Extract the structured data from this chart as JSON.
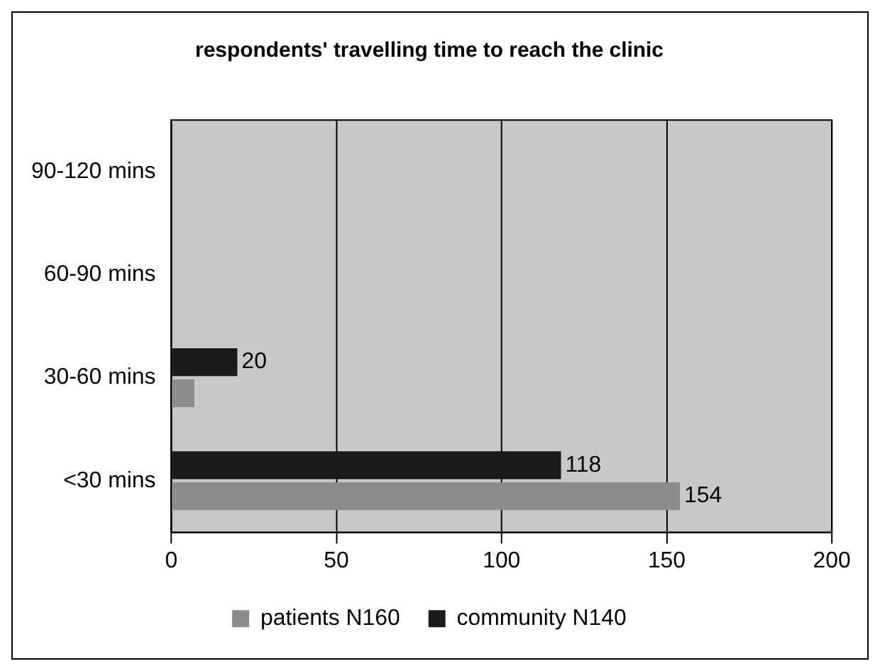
{
  "chart_data": {
    "type": "bar",
    "orientation": "horizontal",
    "title": "respondents' travelling time to reach the clinic",
    "categories": [
      "90-120 mins",
      "60-90 mins",
      "30-60 mins",
      "<30 mins"
    ],
    "series": [
      {
        "name": "patients N160",
        "color": "#8c8c8c",
        "values": [
          0,
          0,
          7,
          154
        ],
        "value_labels": [
          null,
          null,
          null,
          "154"
        ]
      },
      {
        "name": "community N140",
        "color": "#1a1a1a",
        "values": [
          0,
          0,
          20,
          118
        ],
        "value_labels": [
          null,
          null,
          "20",
          "118"
        ]
      }
    ],
    "xlim": [
      0,
      200
    ],
    "xticks": [
      0,
      50,
      100,
      150,
      200
    ],
    "grid": "x",
    "legend": "bottom"
  }
}
